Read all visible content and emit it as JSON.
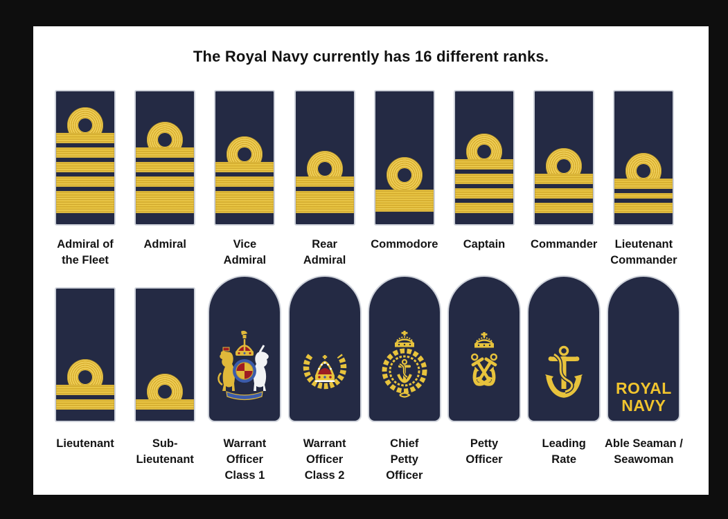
{
  "title": "The Royal Navy currently has 16 different ranks.",
  "colors": {
    "frame_background": "#0e0e0e",
    "card_background": "#ffffff",
    "board_navy": "#242a44",
    "board_border": "#ced2da",
    "stripe_gold": "#e5bf37",
    "stripe_gold_light": "#f2d35f",
    "stripe_gold_dark": "#c9a12c",
    "badge_gold": "#e8c33c",
    "crown_red": "#9e1c22",
    "garter_blue": "#3b5bab",
    "unicorn_white": "#f2f3f5",
    "royal_navy_text_gold": "#f0c42e",
    "label_text": "#141414"
  },
  "rows": [
    {
      "name": "top-row",
      "ranks": [
        {
          "name": "Admiral of the Fleet",
          "label_lines": [
            "Admiral of",
            "the Fleet"
          ],
          "board": "rectangle",
          "insignia": {
            "curl": true,
            "stripes": [
              "narrow",
              "narrow",
              "narrow",
              "narrow",
              "broad"
            ]
          }
        },
        {
          "name": "Admiral",
          "label_lines": [
            "Admiral"
          ],
          "board": "rectangle",
          "insignia": {
            "curl": true,
            "stripes": [
              "narrow",
              "narrow",
              "narrow",
              "broad"
            ]
          }
        },
        {
          "name": "Vice Admiral",
          "label_lines": [
            "Vice",
            "Admiral"
          ],
          "board": "rectangle",
          "insignia": {
            "curl": true,
            "stripes": [
              "narrow",
              "narrow",
              "broad"
            ]
          }
        },
        {
          "name": "Rear Admiral",
          "label_lines": [
            "Rear",
            "Admiral"
          ],
          "board": "rectangle",
          "insignia": {
            "curl": true,
            "stripes": [
              "narrow",
              "broad"
            ]
          }
        },
        {
          "name": "Commodore",
          "label_lines": [
            "Commodore"
          ],
          "board": "rectangle",
          "insignia": {
            "curl": true,
            "stripes": [
              "broad"
            ]
          }
        },
        {
          "name": "Captain",
          "label_lines": [
            "Captain"
          ],
          "board": "rectangle",
          "insignia": {
            "curl": true,
            "stripes": [
              "narrow",
              "narrow",
              "narrow",
              "narrow"
            ]
          }
        },
        {
          "name": "Commander",
          "label_lines": [
            "Commander"
          ],
          "board": "rectangle",
          "insignia": {
            "curl": true,
            "stripes": [
              "narrow",
              "narrow",
              "narrow"
            ]
          }
        },
        {
          "name": "Lieutenant Commander",
          "label_lines": [
            "Lieutenant",
            "Commander"
          ],
          "board": "rectangle",
          "insignia": {
            "curl": true,
            "stripes": [
              "narrow",
              "thin",
              "narrow"
            ]
          }
        }
      ]
    },
    {
      "name": "bottom-row",
      "ranks": [
        {
          "name": "Lieutenant",
          "label_lines": [
            "Lieutenant"
          ],
          "board": "rectangle",
          "insignia": {
            "curl": true,
            "stripes": [
              "narrow",
              "narrow"
            ]
          }
        },
        {
          "name": "Sub-Lieutenant",
          "label_lines": [
            "Sub-",
            "Lieutenant"
          ],
          "board": "rectangle",
          "insignia": {
            "curl": true,
            "stripes": [
              "narrow"
            ]
          }
        },
        {
          "name": "Warrant Officer Class 1",
          "label_lines": [
            "Warrant",
            "Officer",
            "Class 1"
          ],
          "board": "rounded",
          "emblem": "royal-coat-of-arms"
        },
        {
          "name": "Warrant Officer Class 2",
          "label_lines": [
            "Warrant",
            "Officer",
            "Class 2"
          ],
          "board": "rounded",
          "emblem": "crown-in-wreath"
        },
        {
          "name": "Chief Petty Officer",
          "label_lines": [
            "Chief",
            "Petty",
            "Officer"
          ],
          "board": "rounded",
          "emblem": "crowned-anchor-wreath-badge"
        },
        {
          "name": "Petty Officer",
          "label_lines": [
            "Petty",
            "Officer"
          ],
          "board": "rounded",
          "emblem": "crown-crossed-anchors"
        },
        {
          "name": "Leading Rate",
          "label_lines": [
            "Leading",
            "Rate"
          ],
          "board": "rounded",
          "emblem": "fouled-anchor"
        },
        {
          "name": "Able Seaman / Seawoman",
          "label_lines": [
            "Able Seaman /",
            "Seawoman"
          ],
          "board": "rounded",
          "emblem_text": [
            "ROYAL",
            "NAVY"
          ]
        }
      ]
    }
  ]
}
